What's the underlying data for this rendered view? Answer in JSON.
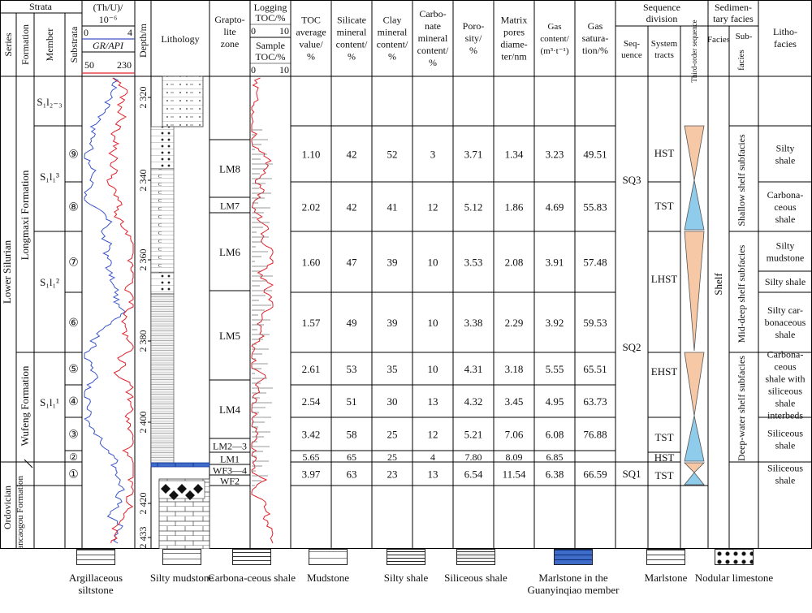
{
  "header": {
    "strata": "Strata",
    "series": "Series",
    "formation": "Formation",
    "member": "Member",
    "substrata": "Substrata",
    "thu_1": "(Th/U)/",
    "thu_2": "10⁻⁶",
    "thu_min": "0",
    "thu_max": "4",
    "gr": "GR/API",
    "gr_min": "50",
    "gr_max": "230",
    "depth": "Depth/m",
    "lithology": "Lithology",
    "grapto_1": "Grapto-",
    "grapto_2": "lite",
    "grapto_3": "zone",
    "logtoc_1": "Logging",
    "logtoc_2": "TOC/%",
    "logtoc_min": "0",
    "logtoc_max": "10",
    "samtoc_1": "Sample",
    "samtoc_2": "TOC/%",
    "samtoc_min": "0",
    "samtoc_max": "10",
    "toc": [
      "TOC",
      "average",
      "value/",
      "%"
    ],
    "silicate": [
      "Silicate",
      "mineral",
      "content/",
      "%"
    ],
    "clay": [
      "Clay",
      "mineral",
      "content/",
      "%"
    ],
    "carbonate": [
      "Carbo-",
      "nate",
      "mineral",
      "content/",
      "%"
    ],
    "porosity": [
      "Poro-",
      "sity/",
      "%"
    ],
    "matrix": [
      "Matrix",
      "pores",
      "diame-",
      "ter/nm"
    ],
    "gas_content": [
      "Gas",
      "content/",
      "(m³·t⁻¹)"
    ],
    "gas_sat": [
      "Gas",
      "satura-",
      "tion/%"
    ],
    "seqdiv_1": "Sequence",
    "seqdiv_2": "division",
    "sequence_1": "Seq-",
    "sequence_2": "uence",
    "systracts_1": "System",
    "systracts_2": "tracts",
    "thirdorder": "Third-order sequence",
    "sedfacies_1": "Sedimen-",
    "sedfacies_2": "tary facies",
    "facies": "Facies",
    "subfacies_1": "Sub-",
    "subfacies_2": "facies",
    "lithofacies_1": "Litho-",
    "lithofacies_2": "facies"
  },
  "strata": {
    "series_lower_silurian": "Lower Silurian",
    "series_ordovician": "Ordovician",
    "formation_longmaxi": "Longmaxi Formation",
    "formation_wufeng": "Wufeng Formation",
    "formation_jiancaogou": "Jiancaogou Formation",
    "member_s1l23": "S₁l₂₋₃",
    "member_s1l13": "S₁l₁³",
    "member_s1l12": "S₁l₁²",
    "member_s1l11": "S₁l₁¹"
  },
  "depth_ticks": [
    "2 320",
    "2 340",
    "2 360",
    "2 380",
    "2 400",
    "2 420",
    "2 433"
  ],
  "graptolite_zones": [
    "LM8",
    "LM7",
    "LM6",
    "LM5",
    "LM4",
    "LM2—3",
    "LM1",
    "WF3—4",
    "WF2"
  ],
  "rows": [
    {
      "sub": "⑨",
      "toc": "1.10",
      "silicate": "42",
      "clay": "52",
      "carbonate": "3",
      "porosity": "3.71",
      "matrix": "1.34",
      "gas": "3.23",
      "sat": "49.51"
    },
    {
      "sub": "⑧",
      "toc": "2.02",
      "silicate": "42",
      "clay": "41",
      "carbonate": "12",
      "porosity": "5.12",
      "matrix": "1.86",
      "gas": "4.69",
      "sat": "55.83"
    },
    {
      "sub": "⑦",
      "toc": "1.60",
      "silicate": "47",
      "clay": "39",
      "carbonate": "10",
      "porosity": "3.53",
      "matrix": "2.08",
      "gas": "3.91",
      "sat": "57.48"
    },
    {
      "sub": "⑥",
      "toc": "1.57",
      "silicate": "49",
      "clay": "39",
      "carbonate": "10",
      "porosity": "3.38",
      "matrix": "2.29",
      "gas": "3.92",
      "sat": "59.53"
    },
    {
      "sub": "⑤",
      "toc": "2.61",
      "silicate": "53",
      "clay": "35",
      "carbonate": "10",
      "porosity": "4.31",
      "matrix": "3.18",
      "gas": "5.55",
      "sat": "65.51"
    },
    {
      "sub": "④",
      "toc": "2.54",
      "silicate": "51",
      "clay": "30",
      "carbonate": "13",
      "porosity": "4.32",
      "matrix": "3.45",
      "gas": "4.95",
      "sat": "63.73"
    },
    {
      "sub": "③",
      "toc": "3.42",
      "silicate": "58",
      "clay": "25",
      "carbonate": "12",
      "porosity": "5.21",
      "matrix": "7.06",
      "gas": "6.08",
      "sat": "76.88"
    },
    {
      "sub": "②",
      "toc": "5.65",
      "silicate": "65",
      "clay": "25",
      "carbonate": "4",
      "porosity": "7.80",
      "matrix": "8.09",
      "gas": "6.85",
      "sat": ""
    },
    {
      "sub": "①",
      "toc": "3.97",
      "silicate": "63",
      "clay": "23",
      "carbonate": "13",
      "porosity": "6.54",
      "matrix": "11.54",
      "gas": "6.38",
      "sat": "66.59"
    }
  ],
  "sequences": [
    "SQ3",
    "SQ2",
    "SQ1"
  ],
  "system_tracts": [
    "HST",
    "TST",
    "LHST",
    "EHST",
    "TST",
    "HST",
    "TST"
  ],
  "facies": "Shelf",
  "subfacies": [
    "Shallow shelf subfacies",
    "Mid-deep shelf subfacies",
    "Deep-water shelf subfacies"
  ],
  "lithofacies": {
    "silty_shale": [
      "Silty",
      "shale"
    ],
    "carbonaceous_shale": [
      "Carbona-",
      "ceous",
      "shale"
    ],
    "silty_mudstone": [
      "Silty",
      "mudstone"
    ],
    "silty_shale_2": "Silty shale",
    "silty_carb": [
      "Silty car-",
      "bonaceous",
      "shale"
    ],
    "carb_siliceous": [
      "Carbona-",
      "ceous",
      "shale with",
      "siliceous",
      "shale",
      "interbeds"
    ],
    "siliceous_shale": [
      "Siliceous",
      "shale"
    ],
    "siliceous_shale_2": [
      "Siliceous",
      "shale"
    ]
  },
  "legend": [
    {
      "label": "Argillaceous siltstone",
      "pattern": "argillaceous-siltstone"
    },
    {
      "label": "Silty mudstone",
      "pattern": "silty-mudstone"
    },
    {
      "label": "Carbona-ceous shale",
      "pattern": "carbonaceous-shale"
    },
    {
      "label": "Mudstone",
      "pattern": "mudstone"
    },
    {
      "label": "Silty shale",
      "pattern": "silty-shale"
    },
    {
      "label": "Siliceous shale",
      "pattern": "siliceous-shale"
    },
    {
      "label": "Marlstone in the Guanyinqiao member",
      "pattern": "marlstone-guanyinqiao"
    },
    {
      "label": "Marlstone",
      "pattern": "marlstone"
    },
    {
      "label": "Nodular limestone",
      "pattern": "nodular-limestone"
    }
  ],
  "colors": {
    "gr_curve": "#e0202a",
    "thu_curve": "#3a55c8",
    "regressive": "#f6c8a6",
    "transgressive": "#8fcbea",
    "guanyinqiao": "#3f6cc9"
  }
}
